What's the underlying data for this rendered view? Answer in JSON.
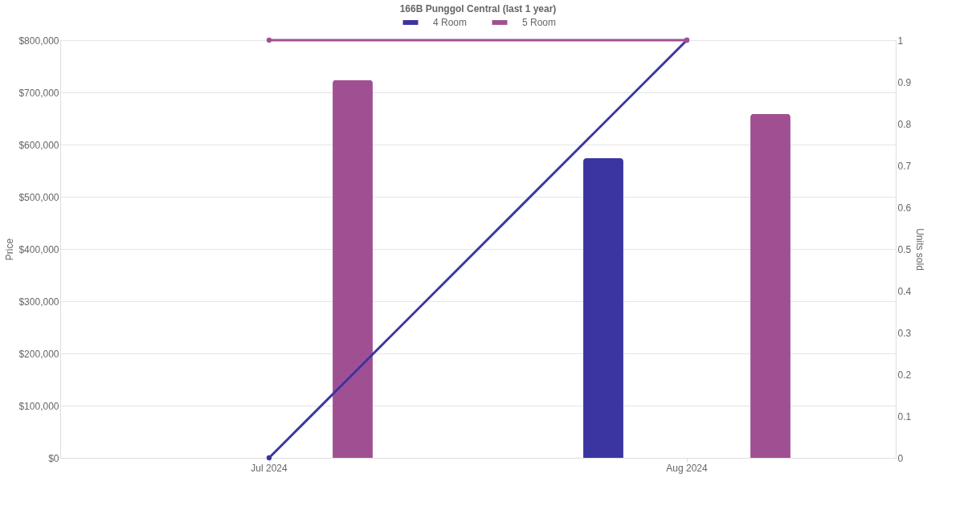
{
  "chart_data": {
    "type": "bar",
    "title": "166B Punggol Central (last 1 year)",
    "categories": [
      "Jul 2024",
      "Aug 2024"
    ],
    "ylabel": "Price",
    "y2label": "Units sold",
    "series": [
      {
        "name": "4 Room",
        "color": "#3a35a0",
        "values": [
          null,
          574000
        ]
      },
      {
        "name": "5 Room",
        "color": "#a05092",
        "values": [
          724000,
          659000
        ]
      },
      {
        "type": "line",
        "axis": "y2",
        "color": "#3a35a0",
        "values": [
          0,
          1
        ]
      },
      {
        "type": "line",
        "axis": "y2",
        "color": "#a05092",
        "values": [
          1,
          1
        ]
      }
    ],
    "ylim": [
      0,
      800000
    ],
    "yticks": [
      {
        "value": 0,
        "label": "$0"
      },
      {
        "value": 100000,
        "label": "$100,000"
      },
      {
        "value": 200000,
        "label": "$200,000"
      },
      {
        "value": 300000,
        "label": "$300,000"
      },
      {
        "value": 400000,
        "label": "$400,000"
      },
      {
        "value": 500000,
        "label": "$500,000"
      },
      {
        "value": 600000,
        "label": "$600,000"
      },
      {
        "value": 700000,
        "label": "$700,000"
      },
      {
        "value": 800000,
        "label": "$800,000"
      }
    ],
    "y2lim": [
      0,
      1
    ],
    "y2ticks": [
      0,
      0.1,
      0.2,
      0.3,
      0.4,
      0.5,
      0.6,
      0.7,
      0.8,
      0.9,
      1
    ],
    "grid": "y",
    "legend": "top",
    "marker": "circle"
  }
}
